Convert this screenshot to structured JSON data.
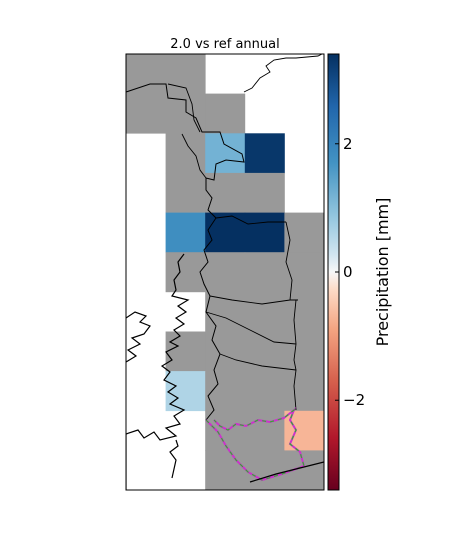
{
  "title": "2.0 vs ref annual",
  "colorbar": {
    "label": "Precipitation [mm]",
    "range": [
      -3.4,
      3.4
    ],
    "ticks": [
      {
        "value": 2,
        "label": "2"
      },
      {
        "value": 0,
        "label": "0"
      },
      {
        "value": -2,
        "label": "−2"
      }
    ],
    "colormap": "RdBu"
  },
  "grid": {
    "columns": 5,
    "rows": 11,
    "cells": [
      {
        "col": 0,
        "row": 0,
        "value": 0
      },
      {
        "col": 1,
        "row": 0,
        "value": 0
      },
      {
        "col": 0,
        "row": 1,
        "value": 0
      },
      {
        "col": 1,
        "row": 1,
        "value": 0
      },
      {
        "col": 2,
        "row": 1,
        "value": 0
      },
      {
        "col": 1,
        "row": 2,
        "value": 0
      },
      {
        "col": 2,
        "row": 2,
        "value": 1.2
      },
      {
        "col": 3,
        "row": 2,
        "value": 3.3
      },
      {
        "col": 1,
        "row": 3,
        "value": 0
      },
      {
        "col": 2,
        "row": 3,
        "value": 0
      },
      {
        "col": 3,
        "row": 3,
        "value": 0
      },
      {
        "col": 1,
        "row": 4,
        "value": 1.8
      },
      {
        "col": 2,
        "row": 4,
        "value": 3.4
      },
      {
        "col": 3,
        "row": 4,
        "value": 3.4
      },
      {
        "col": 4,
        "row": 4,
        "value": 0
      },
      {
        "col": 1,
        "row": 5,
        "value": 0
      },
      {
        "col": 2,
        "row": 5,
        "value": 0
      },
      {
        "col": 3,
        "row": 5,
        "value": 0
      },
      {
        "col": 4,
        "row": 5,
        "value": 0
      },
      {
        "col": 2,
        "row": 6,
        "value": 0
      },
      {
        "col": 3,
        "row": 6,
        "value": 0
      },
      {
        "col": 4,
        "row": 6,
        "value": 0
      },
      {
        "col": 1,
        "row": 7,
        "value": 0
      },
      {
        "col": 2,
        "row": 7,
        "value": 0
      },
      {
        "col": 3,
        "row": 7,
        "value": 0
      },
      {
        "col": 4,
        "row": 7,
        "value": 0
      },
      {
        "col": 1,
        "row": 8,
        "value": 0.6
      },
      {
        "col": 2,
        "row": 8,
        "value": 0
      },
      {
        "col": 3,
        "row": 8,
        "value": 0
      },
      {
        "col": 4,
        "row": 8,
        "value": 0
      },
      {
        "col": 2,
        "row": 9,
        "value": 0
      },
      {
        "col": 3,
        "row": 9,
        "value": 0
      },
      {
        "col": 4,
        "row": 9,
        "value": -0.7
      },
      {
        "col": 2,
        "row": 10,
        "value": 0
      },
      {
        "col": 3,
        "row": 10,
        "value": 0
      },
      {
        "col": 4,
        "row": 10,
        "value": 0
      }
    ]
  },
  "colors": {
    "zero_cell": "#999999",
    "border_lines": "#000000",
    "highlight_border": "#cc33cc",
    "highlight_border_dash": "#33aa33"
  }
}
